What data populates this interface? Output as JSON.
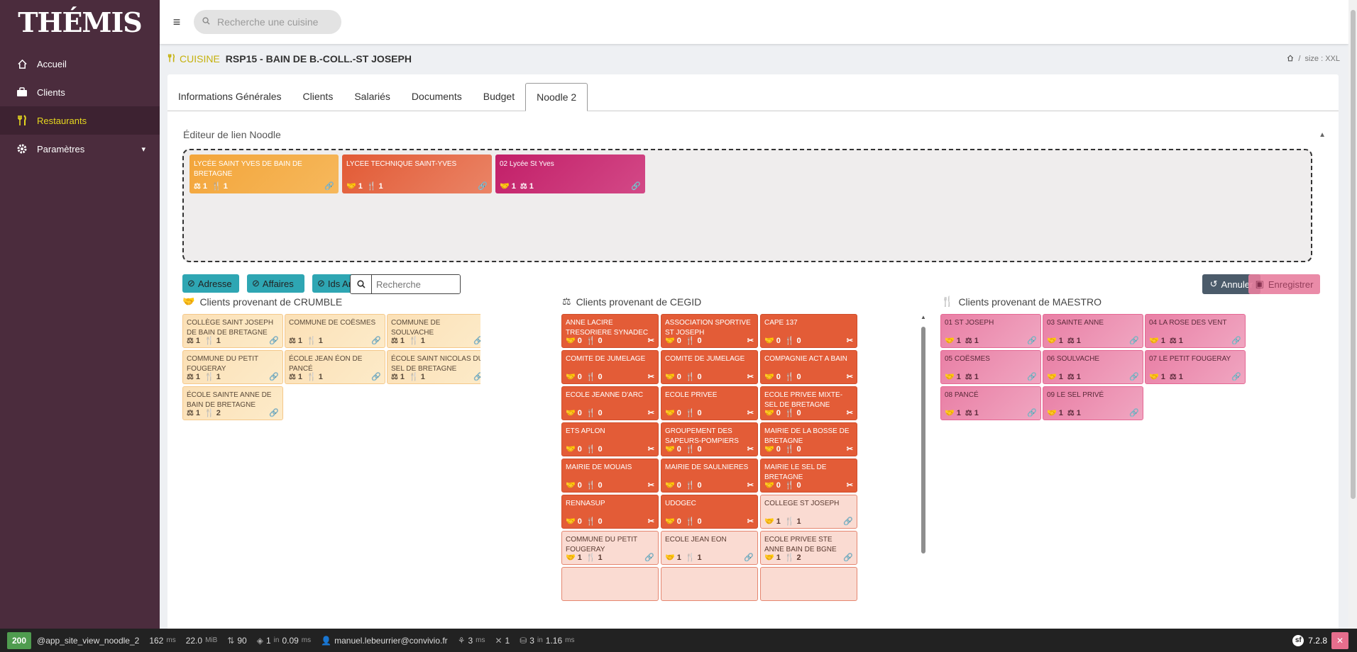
{
  "app": {
    "logo": "THÉMIS"
  },
  "sidebar": {
    "items": [
      {
        "label": "Accueil",
        "icon": "home-icon"
      },
      {
        "label": "Clients",
        "icon": "briefcase-icon"
      },
      {
        "label": "Restaurants",
        "icon": "utensils-icon",
        "active": true
      },
      {
        "label": "Paramètres",
        "icon": "gear-icon"
      }
    ]
  },
  "topbar": {
    "search_placeholder": "Recherche une cuisine"
  },
  "header": {
    "kind": "CUISINE",
    "title": "RSP15 - BAIN DE B.-COLL.-ST JOSEPH",
    "separator": "/",
    "size_label": "size : XXL"
  },
  "tabs": [
    "Informations Générales",
    "Clients",
    "Salariés",
    "Documents",
    "Budget",
    "Noodle 2"
  ],
  "active_tab": "Noodle 2",
  "editor": {
    "title": "Éditeur de lien Noodle",
    "linked": [
      {
        "name": "LYCÉE SAINT YVES DE BAIN DE BRETAGNE",
        "a": "1",
        "b": "1"
      },
      {
        "name": "LYCEE TECHNIQUE SAINT-YVES",
        "a": "1",
        "b": "1"
      },
      {
        "name": "02 Lycée St Yves",
        "a": "1",
        "b": "1"
      }
    ]
  },
  "toolbar": {
    "adresse": "Adresse",
    "affaires": "Affaires",
    "ids_argos": "Ids Argos",
    "search_placeholder": "Recherche",
    "cancel": "Annuler",
    "save": "Enregistrer"
  },
  "columns": {
    "crumble": {
      "title": "Clients provenant de CRUMBLE",
      "items": [
        {
          "name": "COLLÈGE SAINT JOSEPH DE BAIN DE BRETAGNE",
          "a": "1",
          "b": "1"
        },
        {
          "name": "COMMUNE DE COËSMES",
          "a": "1",
          "b": "1"
        },
        {
          "name": "COMMUNE DE SOULVACHE",
          "a": "1",
          "b": "1"
        },
        {
          "name": "COMMUNE DU PETIT FOUGERAY",
          "a": "1",
          "b": "1"
        },
        {
          "name": "ÉCOLE JEAN ÉON DE PANCÉ",
          "a": "1",
          "b": "1"
        },
        {
          "name": "ÉCOLE SAINT NICOLAS DU SEL DE BRETAGNE",
          "a": "1",
          "b": "1"
        },
        {
          "name": "ÉCOLE SAINTE ANNE DE BAIN DE BRETAGNE",
          "a": "1",
          "b": "2"
        }
      ]
    },
    "cegid": {
      "title": "Clients provenant de CEGID",
      "items": [
        {
          "name": "ANNE LACIRE TRESORIERE SYNADEC",
          "a": "0",
          "b": "0",
          "linked": false
        },
        {
          "name": "ASSOCIATION SPORTIVE ST JOSEPH",
          "a": "0",
          "b": "0",
          "linked": false
        },
        {
          "name": "CAPE 137",
          "a": "0",
          "b": "0",
          "linked": false
        },
        {
          "name": "COMITE DE JUMELAGE",
          "a": "0",
          "b": "0",
          "linked": false
        },
        {
          "name": "COMITE DE JUMELAGE",
          "a": "0",
          "b": "0",
          "linked": false
        },
        {
          "name": "COMPAGNIE ACT A BAIN",
          "a": "0",
          "b": "0",
          "linked": false
        },
        {
          "name": "ECOLE JEANNE D'ARC",
          "a": "0",
          "b": "0",
          "linked": false
        },
        {
          "name": "ECOLE PRIVEE",
          "a": "0",
          "b": "0",
          "linked": false
        },
        {
          "name": "ECOLE PRIVEE MIXTE-SEL DE BRETAGNE",
          "a": "0",
          "b": "0",
          "linked": false
        },
        {
          "name": "ETS APLON",
          "a": "0",
          "b": "0",
          "linked": false
        },
        {
          "name": "GROUPEMENT DES SAPEURS-POMPIERS",
          "a": "0",
          "b": "0",
          "linked": false
        },
        {
          "name": "MAIRIE DE LA BOSSE DE BRETAGNE",
          "a": "0",
          "b": "0",
          "linked": false
        },
        {
          "name": "MAIRIE DE MOUAIS",
          "a": "0",
          "b": "0",
          "linked": false
        },
        {
          "name": "MAIRIE DE SAULNIERES",
          "a": "0",
          "b": "0",
          "linked": false
        },
        {
          "name": "MAIRIE LE SEL DE BRETAGNE",
          "a": "0",
          "b": "0",
          "linked": false
        },
        {
          "name": "RENNASUP",
          "a": "0",
          "b": "0",
          "linked": false
        },
        {
          "name": "UDOGEC",
          "a": "0",
          "b": "0",
          "linked": false
        },
        {
          "name": "COLLEGE ST JOSEPH",
          "a": "1",
          "b": "1",
          "linked": true
        },
        {
          "name": "COMMUNE DU PETIT FOUGERAY",
          "a": "1",
          "b": "1",
          "linked": true
        },
        {
          "name": "ECOLE JEAN EON",
          "a": "1",
          "b": "1",
          "linked": true
        },
        {
          "name": "ECOLE PRIVEE STE ANNE BAIN DE BGNE",
          "a": "1",
          "b": "2",
          "linked": true
        }
      ]
    },
    "maestro": {
      "title": "Clients provenant de MAESTRO",
      "items": [
        {
          "name": "01 ST JOSEPH",
          "a": "1",
          "b": "1"
        },
        {
          "name": "03 Sainte Anne",
          "a": "1",
          "b": "1"
        },
        {
          "name": "04 la rose des vent",
          "a": "1",
          "b": "1"
        },
        {
          "name": "05 COËSMES",
          "a": "1",
          "b": "1"
        },
        {
          "name": "06 SOULVACHE",
          "a": "1",
          "b": "1"
        },
        {
          "name": "07 Le petit Fougeray",
          "a": "1",
          "b": "1"
        },
        {
          "name": "08 pancé",
          "a": "1",
          "b": "1"
        },
        {
          "name": "09 le sel privé",
          "a": "1",
          "b": "1"
        }
      ]
    }
  },
  "debugbar": {
    "status": "200",
    "route": "@app_site_view_noodle_2",
    "time": "162",
    "time_unit": "ms",
    "memory": "22.0",
    "memory_unit": "MiB",
    "requests": "90",
    "cache": "1",
    "cache_detail": "in",
    "cache_time": "0.09",
    "cache_unit": "ms",
    "user": "manuel.lebeurrier@convivio.fr",
    "twig_time": "3",
    "twig_unit": "ms",
    "events": "1",
    "db": "3",
    "db_detail": "in",
    "db_time": "1.16",
    "db_unit": "ms",
    "sf_version": "7.2.8"
  },
  "colors": {
    "sidebar": "#4b2c3d",
    "accent": "#e5d71f",
    "crumble": "#fbe0b6",
    "cegid": "#e35c37",
    "maestro": "#e97fa5",
    "teal": "#2ea6b3"
  }
}
